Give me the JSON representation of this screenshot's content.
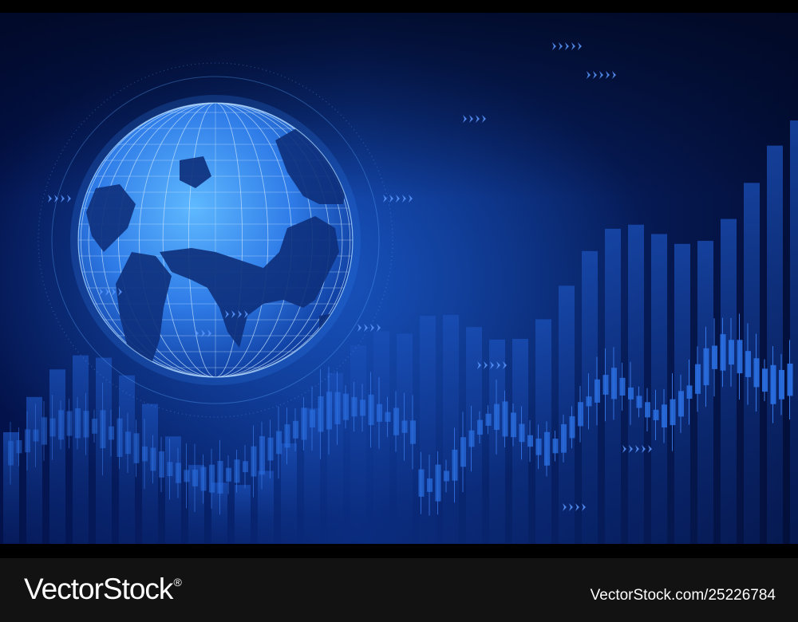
{
  "image": {
    "description_free": true,
    "colors": {
      "background_dark": "#020a2a",
      "background_mid": "#0a2a78",
      "glow": "#1c5fd0",
      "globe_light": "#59b4ff",
      "globe_dark": "#0f3fa0",
      "candle": "#2a6ee0",
      "footer": "#121212"
    },
    "icons": [
      "globe-icon",
      "candlestick-chart-icon",
      "chevron-arrows-icon"
    ]
  },
  "watermark": {
    "brand": "VectorStock",
    "registered": "®",
    "url": "VectorStock.com/25226784"
  }
}
